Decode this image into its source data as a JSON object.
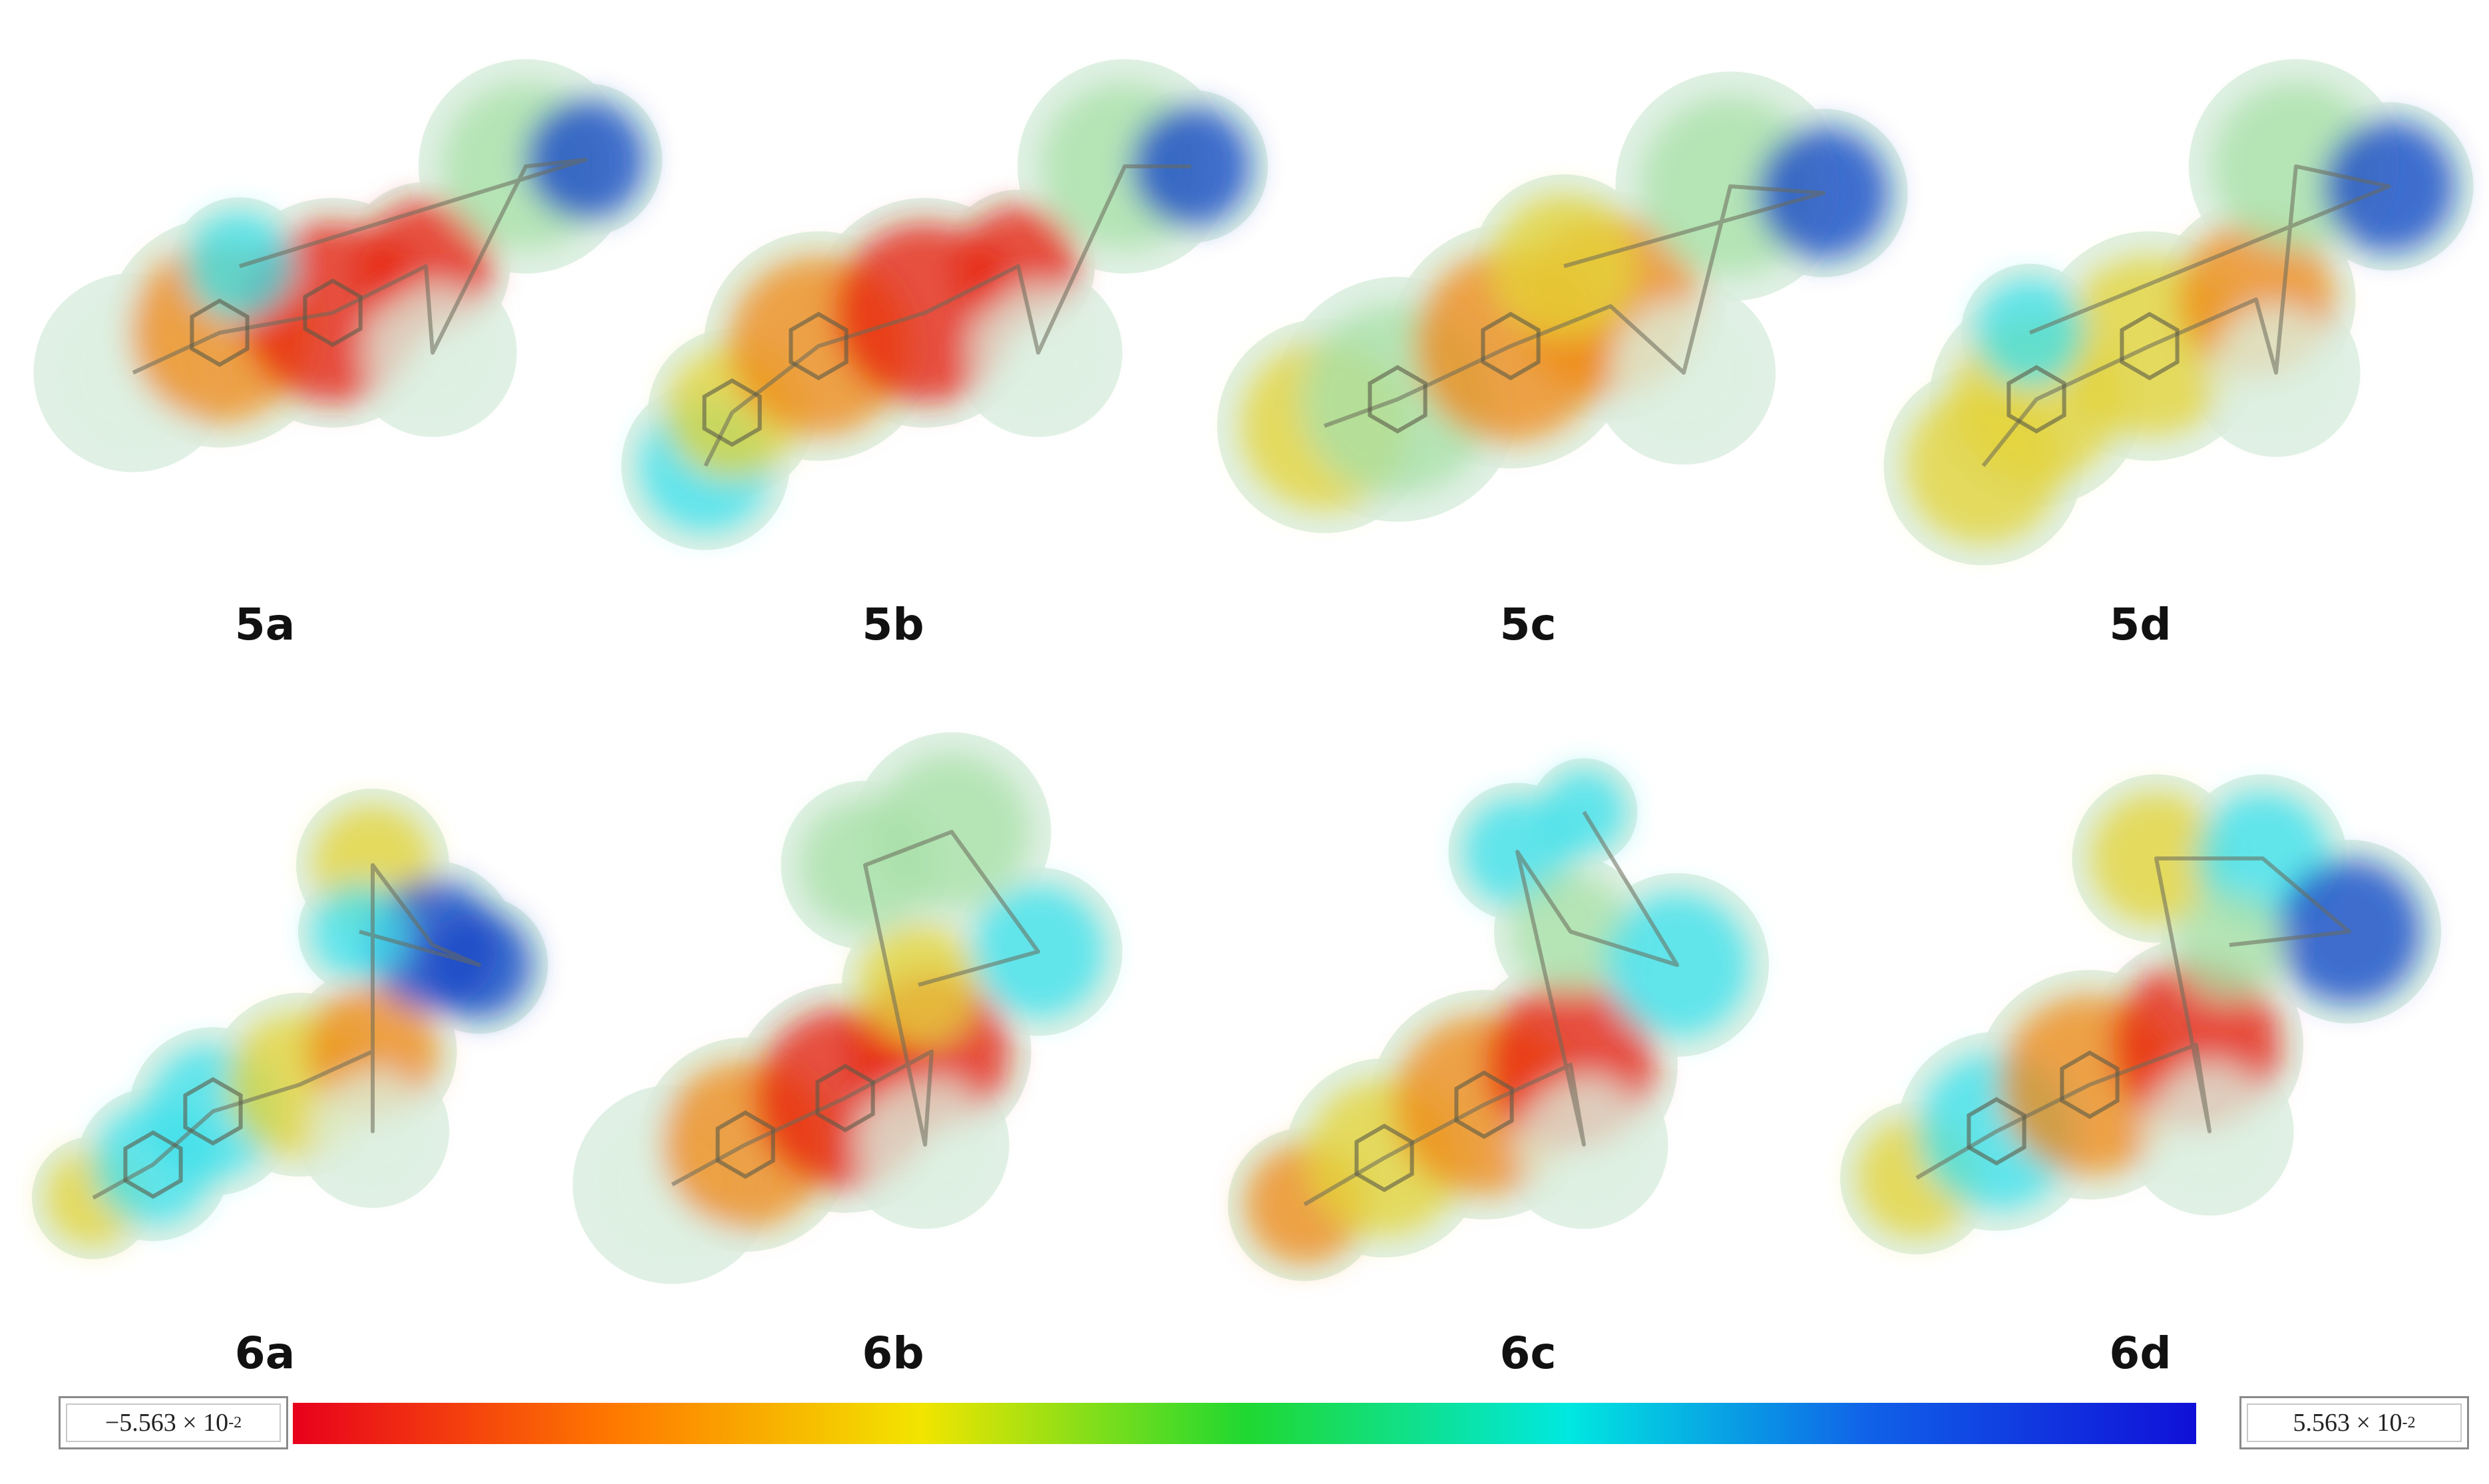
{
  "figure": {
    "molecules": [
      {
        "label": "5a"
      },
      {
        "label": "5b"
      },
      {
        "label": "5c"
      },
      {
        "label": "5d"
      },
      {
        "label": "6a"
      },
      {
        "label": "6b"
      },
      {
        "label": "6c"
      },
      {
        "label": "6d"
      }
    ],
    "colorbar": {
      "min_label": "−5.563 × 10",
      "max_label": "5.563 × 10",
      "exponent": "-2",
      "colors": [
        "#e8001c",
        "#ff7a00",
        "#f2e500",
        "#20d830",
        "#00e8e0",
        "#1060e8",
        "#1010d8"
      ]
    },
    "surface_colors": {
      "red": "#e8220e",
      "orange": "#f08a1a",
      "yellow": "#e4d43a",
      "green": "#a8e0a8",
      "pale": "#dcefe0",
      "cyan": "#3ee0ec",
      "blue": "#1448c8"
    }
  }
}
